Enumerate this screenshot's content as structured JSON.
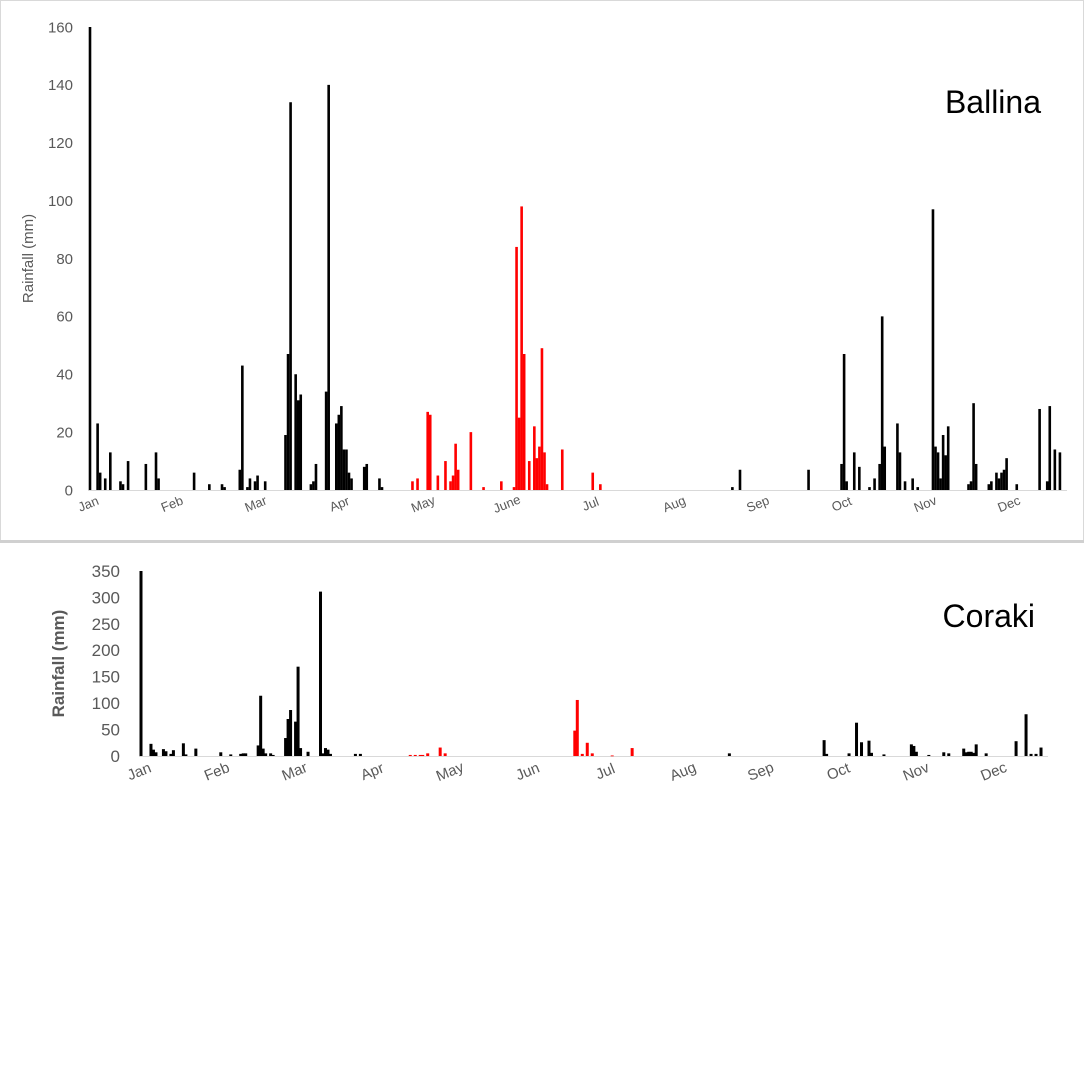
{
  "chart_data": [
    {
      "type": "bar",
      "station": "Ballina",
      "ylabel": "Rainfall (mm)",
      "xlabel": "",
      "ylim": [
        0,
        160
      ],
      "yticks": [
        0,
        20,
        40,
        60,
        80,
        100,
        120,
        140,
        160
      ],
      "month_labels": [
        "Jan",
        "Feb",
        "Mar",
        "Apr",
        "May",
        "June",
        "Jul",
        "Aug",
        "Sep",
        "Oct",
        "Nov",
        "Dec"
      ],
      "grid": false,
      "colors": {
        "dry_season": "#000000",
        "wet_highlight": "#ff0000",
        "axis": "#d9d9d9"
      },
      "series": [
        {
          "color": "#000000",
          "points": [
            [
              1,
              160
            ],
            [
              4,
              23
            ],
            [
              5,
              6
            ],
            [
              7,
              4
            ],
            [
              9,
              13
            ],
            [
              13,
              3
            ],
            [
              14,
              2
            ],
            [
              16,
              10
            ],
            [
              23,
              9
            ],
            [
              27,
              13
            ],
            [
              28,
              4
            ],
            [
              42,
              6
            ],
            [
              48,
              2
            ],
            [
              53,
              2
            ],
            [
              54,
              1
            ],
            [
              60,
              7
            ],
            [
              61,
              43
            ],
            [
              63,
              1
            ],
            [
              64,
              4
            ],
            [
              66,
              3
            ],
            [
              67,
              5
            ],
            [
              70,
              3
            ],
            [
              78,
              19
            ],
            [
              79,
              47
            ],
            [
              80,
              134
            ],
            [
              82,
              40
            ],
            [
              83,
              31
            ],
            [
              84,
              33
            ],
            [
              88,
              2
            ],
            [
              89,
              3
            ],
            [
              90,
              9
            ],
            [
              94,
              34
            ],
            [
              95,
              140
            ],
            [
              98,
              23
            ],
            [
              99,
              26
            ],
            [
              100,
              29
            ],
            [
              101,
              14
            ],
            [
              102,
              14
            ],
            [
              103,
              6
            ],
            [
              104,
              4
            ],
            [
              109,
              8
            ],
            [
              110,
              9
            ],
            [
              115,
              4
            ],
            [
              116,
              1
            ],
            [
              254,
              1
            ],
            [
              257,
              7
            ],
            [
              284,
              7
            ],
            [
              297,
              9
            ],
            [
              298,
              47
            ],
            [
              299,
              3
            ],
            [
              302,
              13
            ],
            [
              304,
              8
            ],
            [
              308,
              1
            ],
            [
              310,
              4
            ],
            [
              312,
              9
            ],
            [
              313,
              60
            ],
            [
              314,
              15
            ],
            [
              319,
              23
            ],
            [
              320,
              13
            ],
            [
              322,
              3
            ],
            [
              325,
              4
            ],
            [
              327,
              1
            ],
            [
              333,
              97
            ],
            [
              334,
              15
            ],
            [
              335,
              13
            ],
            [
              336,
              4
            ],
            [
              337,
              19
            ],
            [
              338,
              12
            ],
            [
              339,
              22
            ],
            [
              347,
              2
            ],
            [
              348,
              3
            ],
            [
              349,
              30
            ],
            [
              350,
              9
            ],
            [
              355,
              2
            ],
            [
              356,
              3
            ],
            [
              358,
              6
            ],
            [
              359,
              4
            ],
            [
              360,
              6
            ],
            [
              361,
              7
            ],
            [
              362,
              11
            ],
            [
              366,
              2
            ],
            [
              375,
              28
            ],
            [
              378,
              3
            ],
            [
              379,
              29
            ],
            [
              381,
              14
            ],
            [
              383,
              13
            ]
          ]
        },
        {
          "color": "#ff0000",
          "points": [
            [
              128,
              3
            ],
            [
              130,
              4
            ],
            [
              134,
              27
            ],
            [
              135,
              26
            ],
            [
              138,
              5
            ],
            [
              141,
              10
            ],
            [
              143,
              3
            ],
            [
              144,
              5
            ],
            [
              145,
              16
            ],
            [
              146,
              7
            ],
            [
              151,
              20
            ],
            [
              156,
              1
            ],
            [
              163,
              3
            ],
            [
              168,
              1
            ],
            [
              169,
              84
            ],
            [
              170,
              25
            ],
            [
              171,
              98
            ],
            [
              172,
              47
            ],
            [
              174,
              10
            ],
            [
              176,
              22
            ],
            [
              177,
              11
            ],
            [
              178,
              15
            ],
            [
              179,
              49
            ],
            [
              180,
              13
            ],
            [
              181,
              2
            ],
            [
              187,
              14
            ],
            [
              199,
              6
            ],
            [
              202,
              2
            ]
          ]
        }
      ]
    },
    {
      "type": "bar",
      "station": "Coraki",
      "ylabel": "Rainfall (mm)",
      "xlabel": "",
      "ylim": [
        0,
        350
      ],
      "yticks": [
        0,
        50,
        100,
        150,
        200,
        250,
        300,
        350
      ],
      "month_labels": [
        "Jan",
        "Feb",
        "Mar",
        "Apr",
        "May",
        "Jun",
        "Jul",
        "Aug",
        "Sep",
        "Oct",
        "Nov",
        "Dec"
      ],
      "grid": false,
      "colors": {
        "dry_season": "#000000",
        "wet_highlight": "#ff0000",
        "axis": "#d9d9d9"
      },
      "series": [
        {
          "color": "#000000",
          "points": [
            [
              1,
              350
            ],
            [
              5,
              23
            ],
            [
              6,
              12
            ],
            [
              7,
              7
            ],
            [
              10,
              13
            ],
            [
              11,
              9
            ],
            [
              13,
              4
            ],
            [
              14,
              11
            ],
            [
              18,
              24
            ],
            [
              19,
              3
            ],
            [
              23,
              14
            ],
            [
              33,
              7
            ],
            [
              37,
              3
            ],
            [
              41,
              4
            ],
            [
              42,
              5
            ],
            [
              43,
              5
            ],
            [
              48,
              20
            ],
            [
              49,
              114
            ],
            [
              50,
              14
            ],
            [
              51,
              5
            ],
            [
              53,
              5
            ],
            [
              54,
              2
            ],
            [
              59,
              34
            ],
            [
              60,
              70
            ],
            [
              61,
              87
            ],
            [
              63,
              65
            ],
            [
              64,
              169
            ],
            [
              65,
              15
            ],
            [
              68,
              8
            ],
            [
              73,
              311
            ],
            [
              74,
              5
            ],
            [
              75,
              15
            ],
            [
              76,
              12
            ],
            [
              77,
              4
            ],
            [
              87,
              4
            ],
            [
              89,
              4
            ],
            [
              237,
              5
            ],
            [
              275,
              30
            ],
            [
              276,
              4
            ],
            [
              285,
              5
            ],
            [
              288,
              63
            ],
            [
              290,
              26
            ],
            [
              293,
              29
            ],
            [
              294,
              6
            ],
            [
              299,
              3
            ],
            [
              310,
              22
            ],
            [
              311,
              19
            ],
            [
              312,
              8
            ],
            [
              317,
              2
            ],
            [
              323,
              7
            ],
            [
              325,
              5
            ],
            [
              331,
              14
            ],
            [
              332,
              7
            ],
            [
              333,
              8
            ],
            [
              334,
              8
            ],
            [
              335,
              6
            ],
            [
              336,
              22
            ],
            [
              340,
              5
            ],
            [
              352,
              28
            ],
            [
              356,
              79
            ],
            [
              358,
              4
            ],
            [
              360,
              4
            ],
            [
              362,
              16
            ]
          ]
        },
        {
          "color": "#ff0000",
          "points": [
            [
              109,
              2
            ],
            [
              111,
              2
            ],
            [
              113,
              2
            ],
            [
              114,
              2
            ],
            [
              116,
              5
            ],
            [
              121,
              16
            ],
            [
              123,
              5
            ],
            [
              175,
              48
            ],
            [
              176,
              106
            ],
            [
              178,
              4
            ],
            [
              180,
              25
            ],
            [
              182,
              5
            ],
            [
              190,
              1
            ],
            [
              198,
              15
            ]
          ]
        }
      ]
    }
  ]
}
